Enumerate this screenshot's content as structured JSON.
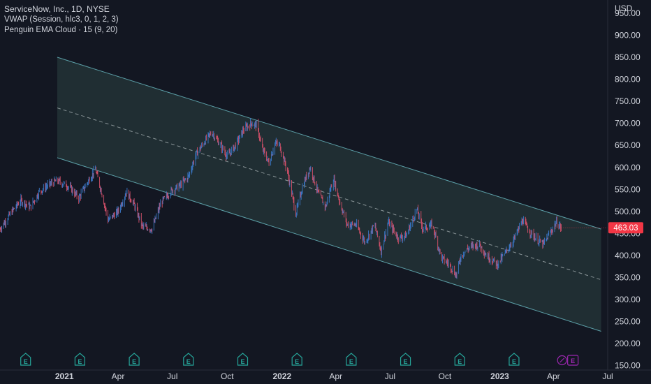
{
  "legend": {
    "symbol_line": "ServiceNow, Inc., 1D, NYSE",
    "indicator_1": "VWAP (Session, hlc3, 0, 1, 2, 3)",
    "indicator_2": "Penguin EMA Cloud · 15 (9, 20)"
  },
  "price_axis": {
    "currency": "USD",
    "last_price_label": "463.03"
  },
  "events": {
    "earnings_icon_label": "E"
  },
  "colors": {
    "background": "#131722",
    "channel_fill": "#233236",
    "channel_line": "#5b9ea6",
    "midline": "#8a9598",
    "up_candle": "#3a78c9",
    "down_candle": "#d5506a",
    "price_badge": "#f23645",
    "earnings_icon": "#26a69a",
    "upcoming_icon": "#9c27b0",
    "axis_text": "#d1d4dc"
  },
  "chart_data": {
    "type": "line",
    "title": "ServiceNow, Inc., 1D, NYSE",
    "xlabel": "",
    "ylabel": "USD",
    "ylim": [
      140,
      980
    ],
    "y_ticks": [
      150,
      200,
      250,
      300,
      350,
      400,
      450,
      500,
      550,
      600,
      650,
      700,
      750,
      800,
      850,
      900,
      950
    ],
    "y_tick_labels": [
      "150.00",
      "200.00",
      "250.00",
      "300.00",
      "350.00",
      "400.00",
      "450.00",
      "500.00",
      "550.00",
      "600.00",
      "650.00",
      "700.00",
      "750.00",
      "800.00",
      "850.00",
      "900.00",
      "950.00"
    ],
    "x_ticks": [
      {
        "label": "2021",
        "date": "2021-01-01",
        "bold": true
      },
      {
        "label": "Apr",
        "date": "2021-04-01",
        "bold": false
      },
      {
        "label": "Jul",
        "date": "2021-07-01",
        "bold": false
      },
      {
        "label": "Oct",
        "date": "2021-10-01",
        "bold": false
      },
      {
        "label": "2022",
        "date": "2022-01-01",
        "bold": true
      },
      {
        "label": "Apr",
        "date": "2022-04-01",
        "bold": false
      },
      {
        "label": "Jul",
        "date": "2022-07-01",
        "bold": false
      },
      {
        "label": "Oct",
        "date": "2022-10-01",
        "bold": false
      },
      {
        "label": "2023",
        "date": "2023-01-01",
        "bold": true
      },
      {
        "label": "Apr",
        "date": "2023-04-01",
        "bold": false
      },
      {
        "label": "Jul",
        "date": "2023-07-01",
        "bold": false
      }
    ],
    "x_range": [
      "2020-09-15",
      "2023-07-01"
    ],
    "series": [
      {
        "values": [
          [
            "2020-09-15",
            460
          ],
          [
            "2020-10-05",
            500
          ],
          [
            "2020-10-20",
            525
          ],
          [
            "2020-11-05",
            510
          ],
          [
            "2020-11-20",
            545
          ],
          [
            "2020-12-05",
            560
          ],
          [
            "2020-12-20",
            570
          ],
          [
            "2021-01-10",
            555
          ],
          [
            "2021-01-25",
            530
          ],
          [
            "2021-02-10",
            570
          ],
          [
            "2021-02-22",
            595
          ],
          [
            "2021-03-05",
            540
          ],
          [
            "2021-03-15",
            480
          ],
          [
            "2021-04-01",
            500
          ],
          [
            "2021-04-15",
            545
          ],
          [
            "2021-04-28",
            515
          ],
          [
            "2021-05-12",
            465
          ],
          [
            "2021-05-28",
            460
          ],
          [
            "2021-06-12",
            520
          ],
          [
            "2021-06-28",
            545
          ],
          [
            "2021-07-15",
            560
          ],
          [
            "2021-07-28",
            580
          ],
          [
            "2021-08-10",
            630
          ],
          [
            "2021-08-25",
            660
          ],
          [
            "2021-09-05",
            680
          ],
          [
            "2021-09-20",
            650
          ],
          [
            "2021-10-01",
            625
          ],
          [
            "2021-10-15",
            650
          ],
          [
            "2021-10-28",
            685
          ],
          [
            "2021-11-10",
            700
          ],
          [
            "2021-11-20",
            695
          ],
          [
            "2021-11-28",
            645
          ],
          [
            "2021-12-10",
            610
          ],
          [
            "2021-12-20",
            655
          ],
          [
            "2021-12-28",
            650
          ],
          [
            "2022-01-10",
            590
          ],
          [
            "2022-01-24",
            495
          ],
          [
            "2022-02-05",
            560
          ],
          [
            "2022-02-17",
            600
          ],
          [
            "2022-03-03",
            540
          ],
          [
            "2022-03-15",
            510
          ],
          [
            "2022-03-28",
            575
          ],
          [
            "2022-04-08",
            520
          ],
          [
            "2022-04-20",
            470
          ],
          [
            "2022-05-05",
            470
          ],
          [
            "2022-05-20",
            430
          ],
          [
            "2022-06-05",
            470
          ],
          [
            "2022-06-16",
            410
          ],
          [
            "2022-06-28",
            475
          ],
          [
            "2022-07-15",
            440
          ],
          [
            "2022-07-28",
            445
          ],
          [
            "2022-08-15",
            505
          ],
          [
            "2022-08-25",
            460
          ],
          [
            "2022-09-10",
            470
          ],
          [
            "2022-09-25",
            395
          ],
          [
            "2022-10-08",
            380
          ],
          [
            "2022-10-20",
            355
          ],
          [
            "2022-10-28",
            400
          ],
          [
            "2022-11-12",
            420
          ],
          [
            "2022-11-28",
            425
          ],
          [
            "2022-12-10",
            400
          ],
          [
            "2022-12-28",
            380
          ],
          [
            "2023-01-10",
            405
          ],
          [
            "2023-01-26",
            440
          ],
          [
            "2023-02-08",
            480
          ],
          [
            "2023-02-20",
            455
          ],
          [
            "2023-03-05",
            435
          ],
          [
            "2023-03-15",
            425
          ],
          [
            "2023-03-28",
            455
          ],
          [
            "2023-04-06",
            475
          ],
          [
            "2023-04-14",
            463
          ]
        ]
      }
    ],
    "regression_channel": {
      "start_date": "2020-12-20",
      "end_date": "2023-06-20",
      "upper": [
        850,
        460
      ],
      "mid": [
        735,
        345
      ],
      "lower": [
        622,
        228
      ]
    },
    "earnings_dates": [
      "2020-10-28",
      "2021-01-27",
      "2021-04-28",
      "2021-07-28",
      "2021-10-27",
      "2022-01-26",
      "2022-04-27",
      "2022-07-27",
      "2022-10-26",
      "2023-01-25"
    ],
    "upcoming_earnings_date": "2023-04-26",
    "last_price": 463.03,
    "grid": false,
    "legend_position": "top-left"
  }
}
